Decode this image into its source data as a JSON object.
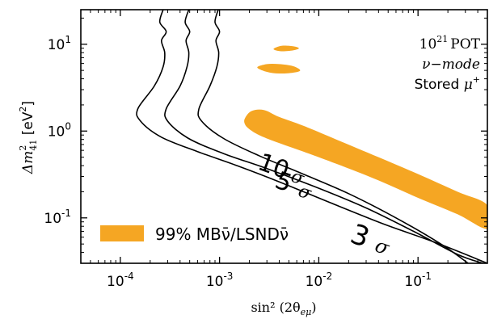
{
  "chart_data": {
    "type": "line",
    "xlabel": "sin² (2θ",
    "xlabel_sub": "eμ",
    "xlabel_close": ")",
    "ylabel": "Δm",
    "ylabel_sub": "41",
    "ylabel_sup": "2",
    "ylabel_unit": " [eV",
    "ylabel_unit_sup": "2",
    "ylabel_unit_close": "]",
    "x_scale": "log",
    "y_scale": "log",
    "xlim": [
      4e-05,
      0.5
    ],
    "ylim": [
      0.03,
      25
    ],
    "x_ticks": [
      {
        "value": 0.0001,
        "base": "10",
        "exp": "-4"
      },
      {
        "value": 0.001,
        "base": "10",
        "exp": "-3"
      },
      {
        "value": 0.01,
        "base": "10",
        "exp": "-2"
      },
      {
        "value": 0.1,
        "base": "10",
        "exp": "-1"
      }
    ],
    "y_ticks": [
      {
        "value": 10,
        "base": "10",
        "exp": "1"
      },
      {
        "value": 1,
        "base": "10",
        "exp": "0"
      },
      {
        "value": 0.1,
        "base": "10",
        "exp": "-1"
      }
    ],
    "annotations": {
      "line1_base": "10",
      "line1_exp": "21",
      "line1_unit": "POT",
      "line2": "ν−mode",
      "line3_text": "Stored ",
      "line3_mu": "μ",
      "line3_sup": "+"
    },
    "legend": {
      "label": "99% MBν̄/LSNDν̄",
      "position": "bottom-left",
      "color": "#f5a623"
    },
    "contour_color": "#000000",
    "region_color": "#f5a623",
    "series": [
      {
        "name": "10 σ",
        "label_text": "10",
        "label_sigma": "σ",
        "points": [
          [
            0.00027,
            25
          ],
          [
            0.00025,
            18
          ],
          [
            0.00029,
            14
          ],
          [
            0.00026,
            11
          ],
          [
            0.00028,
            8
          ],
          [
            0.00027,
            5.5
          ],
          [
            0.00022,
            3.3
          ],
          [
            0.00015,
            1.8
          ],
          [
            0.00016,
            1.3
          ],
          [
            0.00026,
            0.85
          ],
          [
            0.0006,
            0.58
          ],
          [
            0.0015,
            0.4
          ],
          [
            0.004,
            0.26
          ],
          [
            0.013,
            0.15
          ],
          [
            0.045,
            0.085
          ],
          [
            0.15,
            0.052
          ],
          [
            0.5,
            0.03
          ]
        ]
      },
      {
        "name": "5 σ",
        "label_text": "5",
        "label_sigma": "σ",
        "points": [
          [
            0.00049,
            25
          ],
          [
            0.00045,
            18
          ],
          [
            0.0005,
            14
          ],
          [
            0.00046,
            11
          ],
          [
            0.00049,
            8
          ],
          [
            0.00047,
            5.5
          ],
          [
            0.0004,
            3.3
          ],
          [
            0.00029,
            1.8
          ],
          [
            0.0003,
            1.3
          ],
          [
            0.00048,
            0.83
          ],
          [
            0.0011,
            0.55
          ],
          [
            0.003,
            0.37
          ],
          [
            0.009,
            0.23
          ],
          [
            0.03,
            0.13
          ],
          [
            0.09,
            0.07
          ],
          [
            0.25,
            0.038
          ],
          [
            0.45,
            0.03
          ]
        ]
      },
      {
        "name": "3 σ",
        "label_text": "3",
        "label_sigma": "σ",
        "points": [
          [
            0.00097,
            25
          ],
          [
            0.0009,
            18
          ],
          [
            0.001,
            14
          ],
          [
            0.00092,
            11
          ],
          [
            0.00098,
            8
          ],
          [
            0.00094,
            5.5
          ],
          [
            0.0008,
            3.3
          ],
          [
            0.00062,
            1.8
          ],
          [
            0.00066,
            1.3
          ],
          [
            0.0011,
            0.82
          ],
          [
            0.0025,
            0.52
          ],
          [
            0.0065,
            0.33
          ],
          [
            0.02,
            0.19
          ],
          [
            0.06,
            0.1
          ],
          [
            0.17,
            0.05
          ],
          [
            0.32,
            0.03
          ]
        ]
      }
    ],
    "regions": [
      {
        "points": [
          [
            0.0035,
            8.8
          ],
          [
            0.0042,
            9.6
          ],
          [
            0.0055,
            9.5
          ],
          [
            0.0063,
            9.0
          ],
          [
            0.0055,
            8.5
          ],
          [
            0.0042,
            8.3
          ]
        ]
      },
      {
        "points": [
          [
            0.0024,
            5.4
          ],
          [
            0.003,
            5.9
          ],
          [
            0.004,
            5.9
          ],
          [
            0.0055,
            5.6
          ],
          [
            0.0065,
            5.0
          ],
          [
            0.0055,
            4.7
          ],
          [
            0.004,
            4.6
          ],
          [
            0.003,
            4.8
          ]
        ]
      },
      {
        "points": [
          [
            0.0018,
            1.4
          ],
          [
            0.0021,
            1.7
          ],
          [
            0.0028,
            1.75
          ],
          [
            0.004,
            1.45
          ],
          [
            0.007,
            1.15
          ],
          [
            0.015,
            0.8
          ],
          [
            0.04,
            0.5
          ],
          [
            0.1,
            0.32
          ],
          [
            0.25,
            0.2
          ],
          [
            0.5,
            0.14
          ],
          [
            0.5,
            0.075
          ],
          [
            0.25,
            0.11
          ],
          [
            0.1,
            0.17
          ],
          [
            0.04,
            0.27
          ],
          [
            0.015,
            0.42
          ],
          [
            0.007,
            0.58
          ],
          [
            0.0037,
            0.75
          ],
          [
            0.0025,
            0.9
          ],
          [
            0.002,
            1.05
          ],
          [
            0.0018,
            1.2
          ]
        ]
      }
    ]
  }
}
